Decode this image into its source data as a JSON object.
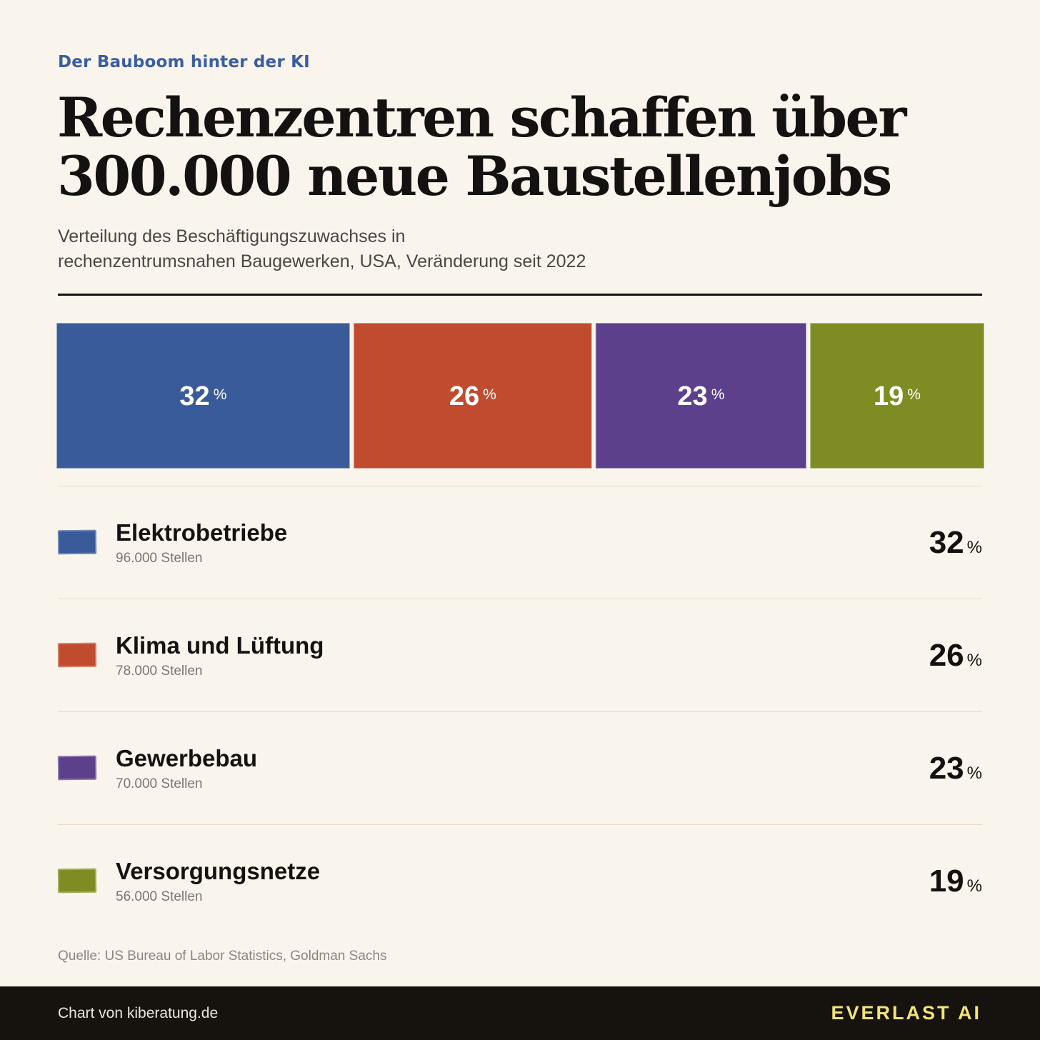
{
  "kicker": "Der Bauboom hinter der KI",
  "headline": {
    "line1": "Rechenzentren schaffen über",
    "line2": "300.000 neue Baustellenjobs"
  },
  "subtitle": {
    "line1": "Verteilung des Beschäftigungszuwachses in",
    "line2": "rechenzentrumsnahen Baugewerken, USA, Veränderung seit 2022"
  },
  "percent_sign": "%",
  "chart_data": {
    "type": "bar",
    "orientation": "stacked-horizontal-100",
    "title": "Rechenzentren schaffen über 300.000 neue Baustellenjobs",
    "categories": [
      "Elektrobetriebe",
      "Klima und Lüftung",
      "Gewerbebau",
      "Versorgungsnetze"
    ],
    "values": [
      32,
      26,
      23,
      19
    ],
    "labels": [
      "32",
      "26",
      "23",
      "19"
    ],
    "unit": "%",
    "jobs": [
      "96.000 Stellen",
      "78.000 Stellen",
      "70.000 Stellen",
      "56.000 Stellen"
    ],
    "colors": [
      "#3a5b9a",
      "#c14b2e",
      "#5d408c",
      "#7f8c23"
    ],
    "grid": false,
    "legend": "below"
  },
  "source": "Quelle: US Bureau of Labor Statistics, Goldman Sachs",
  "footer": {
    "credit": "Chart von kiberatung.de",
    "brand": "EVERLAST AI"
  }
}
